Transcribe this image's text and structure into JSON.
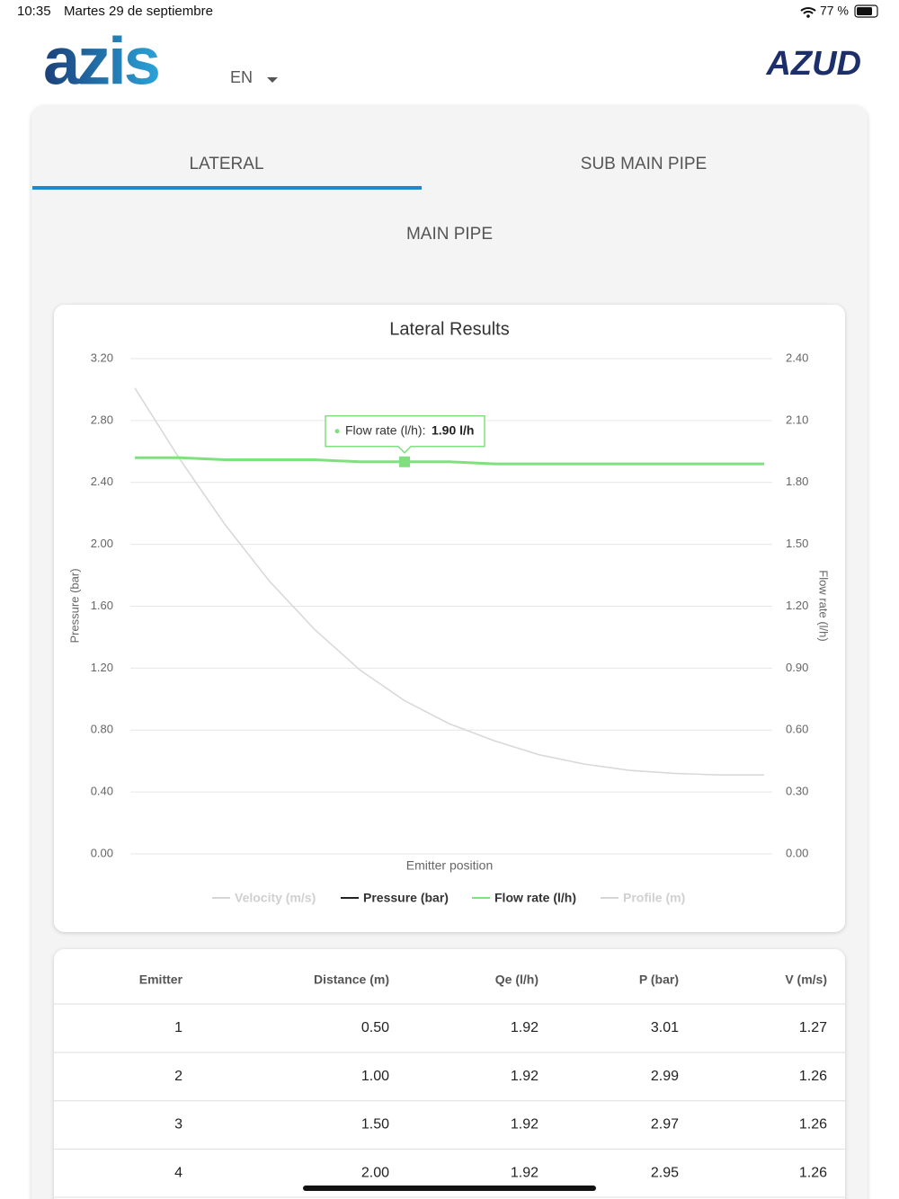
{
  "status_bar": {
    "time": "10:35",
    "date": "Martes 29 de septiembre",
    "battery": "77 %"
  },
  "header": {
    "logo": "azis",
    "language": "EN",
    "brand": "AZUD"
  },
  "tabs": [
    "LATERAL",
    "SUB MAIN PIPE",
    "MAIN PIPE"
  ],
  "chart_data": {
    "type": "line",
    "title": "Lateral Results",
    "x_label": "Emitter position",
    "y_label": "Pressure (bar)",
    "y2_label": "Flow rate (l/h)",
    "categories": [
      null,
      null,
      null,
      null,
      null,
      null,
      null,
      null,
      null,
      null,
      null,
      null,
      null,
      null,
      null
    ],
    "ylim": [
      0,
      3.2
    ],
    "yticks": [
      {
        "value": 0,
        "label": "0.00"
      },
      {
        "value": 0.4,
        "label": "0.40"
      },
      {
        "value": 0.8,
        "label": "0.80"
      },
      {
        "value": 1.2,
        "label": "1.20"
      },
      {
        "value": 1.6,
        "label": "1.60"
      },
      {
        "value": 2,
        "label": "2.00"
      },
      {
        "value": 2.4,
        "label": "2.40"
      },
      {
        "value": 2.8,
        "label": "2.80"
      },
      {
        "value": 3.2,
        "label": "3.20"
      }
    ],
    "y2lim": [
      0,
      2.4
    ],
    "y2ticks": [
      {
        "value": 0,
        "label": "0.00"
      },
      {
        "value": 0.3,
        "label": "0.30"
      },
      {
        "value": 0.6,
        "label": "0.60"
      },
      {
        "value": 0.9,
        "label": "0.90"
      },
      {
        "value": 1.2,
        "label": "1.20"
      },
      {
        "value": 1.5,
        "label": "1.50"
      },
      {
        "value": 1.8,
        "label": "1.80"
      },
      {
        "value": 2.1,
        "label": "2.10"
      },
      {
        "value": 2.4,
        "label": "2.40"
      }
    ],
    "grid": true,
    "series": [
      {
        "name": "Velocity (m/s)",
        "color": "#d6d6d6",
        "hidden": true
      },
      {
        "name": "Pressure (bar)",
        "color": "#222222",
        "line_color": "#d9d9d9",
        "values": [
          3.01,
          2.55,
          2.13,
          1.76,
          1.45,
          1.19,
          0.99,
          0.84,
          0.73,
          0.64,
          0.58,
          0.54,
          0.52,
          0.51,
          0.51
        ]
      },
      {
        "name": "Flow rate (l/h)",
        "color": "#80e080",
        "line_color": "#80e080",
        "axis": "y2",
        "values": [
          1.92,
          1.92,
          1.91,
          1.91,
          1.91,
          1.9,
          1.9,
          1.9,
          1.89,
          1.89,
          1.89,
          1.89,
          1.89,
          1.89,
          1.89
        ]
      },
      {
        "name": "Profile (m)",
        "color": "#d6d6d6",
        "hidden": true
      }
    ],
    "tooltip": {
      "label": "Flow rate (l/h):",
      "value_label": "1.90 l/h"
    }
  },
  "table": {
    "header": [
      "Emitter",
      "Distance (m)",
      "Qe (l/h)",
      "P (bar)",
      "V (m/s)"
    ],
    "rows": [
      [
        "1",
        "0.50",
        "1.92",
        "3.01",
        "1.27"
      ],
      [
        "2",
        "1.00",
        "1.92",
        "2.99",
        "1.26"
      ],
      [
        "3",
        "1.50",
        "1.92",
        "2.97",
        "1.26"
      ],
      [
        "4",
        "2.00",
        "1.92",
        "2.95",
        "1.26"
      ]
    ]
  }
}
